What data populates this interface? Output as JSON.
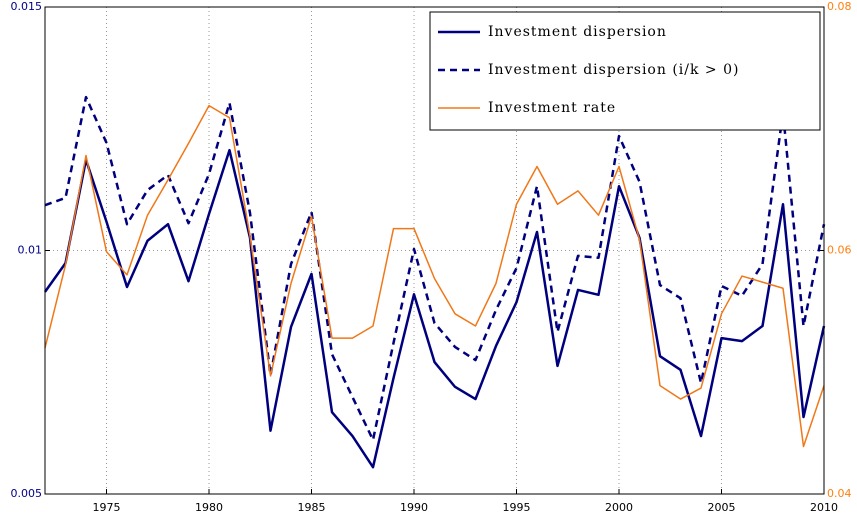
{
  "chart_data": {
    "type": "line",
    "x": [
      1972,
      1973,
      1974,
      1975,
      1976,
      1977,
      1978,
      1979,
      1980,
      1981,
      1982,
      1983,
      1984,
      1985,
      1986,
      1987,
      1988,
      1989,
      1990,
      1991,
      1992,
      1993,
      1994,
      1995,
      1996,
      1997,
      1998,
      1999,
      2000,
      2001,
      2002,
      2003,
      2004,
      2005,
      2006,
      2007,
      2008,
      2009,
      2010
    ],
    "xlim": [
      1972,
      2010
    ],
    "xticks": [
      1975,
      1980,
      1985,
      1990,
      1995,
      2000,
      2005,
      2010
    ],
    "ylim": [
      0.005,
      0.015
    ],
    "yticks": [
      0.005,
      0.01,
      0.015
    ],
    "y2lim": [
      0.04,
      0.08
    ],
    "y2ticks": [
      0.04,
      0.06,
      0.08
    ],
    "grid": true,
    "legend": "upper right",
    "y_color": "#00008b",
    "y2_color": "#ff7f0e",
    "series": [
      {
        "name": "Investment dispersion",
        "color": "#00007f",
        "dash": "solid",
        "width": 2.5,
        "values": [
          0.00915,
          0.00974,
          0.01186,
          0.01059,
          0.00925,
          0.0102,
          0.01054,
          0.00937,
          0.01075,
          0.01206,
          0.01026,
          0.0063,
          0.00843,
          0.00952,
          0.00668,
          0.00619,
          0.00555,
          0.00738,
          0.0091,
          0.00771,
          0.0072,
          0.00695,
          0.00804,
          0.00894,
          0.01038,
          0.00763,
          0.00919,
          0.00909,
          0.01132,
          0.01026,
          0.00783,
          0.00755,
          0.00619,
          0.0082,
          0.00814,
          0.00845,
          0.01095,
          0.00658,
          0.00845
        ]
      },
      {
        "name": "Investment dispersion (i/k > 0)",
        "color": "#00007f",
        "dash": "dashed",
        "width": 2.5,
        "values": [
          0.01093,
          0.01108,
          0.01315,
          0.01221,
          0.01054,
          0.01124,
          0.01155,
          0.01056,
          0.01157,
          0.01303,
          0.01077,
          0.00744,
          0.00972,
          0.01079,
          0.00787,
          0.00699,
          0.00611,
          0.0081,
          0.01003,
          0.00851,
          0.00802,
          0.00775,
          0.00878,
          0.00964,
          0.01132,
          0.00833,
          0.00989,
          0.00985,
          0.01235,
          0.01141,
          0.00929,
          0.00902,
          0.00728,
          0.00927,
          0.00907,
          0.00972,
          0.01284,
          0.00845,
          0.01054
        ]
      },
      {
        "name": "Investment rate",
        "color": "#f07818",
        "dash": "solid",
        "width": 1.5,
        "axis": "y2",
        "values": [
          0.052,
          0.0588,
          0.0678,
          0.0599,
          0.058,
          0.0629,
          0.0658,
          0.0688,
          0.0719,
          0.0709,
          0.0612,
          0.0497,
          0.0573,
          0.0628,
          0.0528,
          0.0528,
          0.0538,
          0.0618,
          0.0618,
          0.0577,
          0.0548,
          0.0538,
          0.0573,
          0.0638,
          0.0669,
          0.0638,
          0.0649,
          0.0629,
          0.0669,
          0.0609,
          0.0489,
          0.0478,
          0.0487,
          0.0548,
          0.0579,
          0.0574,
          0.0569,
          0.0439,
          0.0489
        ]
      }
    ]
  }
}
